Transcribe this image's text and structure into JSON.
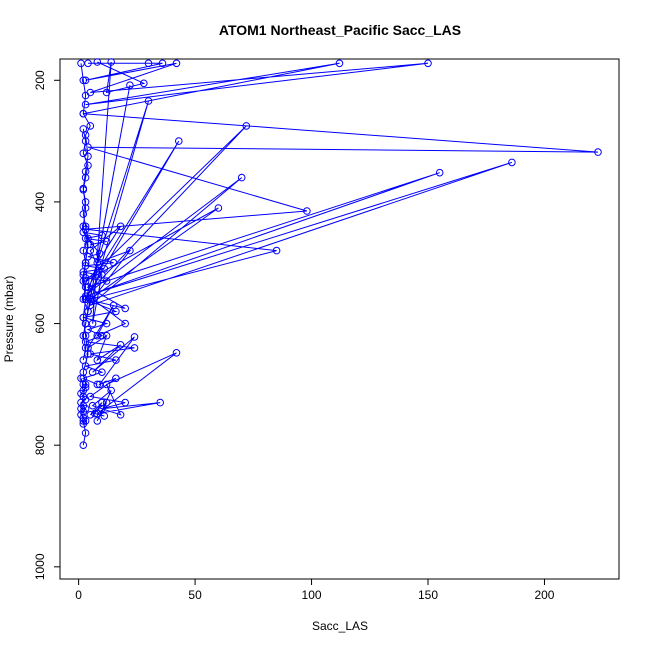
{
  "chart_data": {
    "type": "line",
    "title": "ATOM1 Northeast_Pacific Sacc_LAS",
    "xlabel": "Sacc_LAS",
    "ylabel": "Pressure (mbar)",
    "xlim": [
      -8,
      232
    ],
    "ylim": [
      1020,
      165
    ],
    "y_reversed": true,
    "x_ticks": [
      0,
      50,
      100,
      150,
      200
    ],
    "y_ticks": [
      200,
      400,
      600,
      800,
      1000
    ],
    "grid": false,
    "legend": "none",
    "series_color": "#0000ff",
    "marker": "open-circle",
    "series": [
      {
        "x": [
          1,
          2,
          3,
          2,
          5,
          3,
          4,
          3,
          2,
          3,
          2,
          4,
          3,
          2,
          3,
          2,
          3,
          4,
          2,
          3,
          2,
          1,
          2,
          3,
          2
        ],
        "y": [
          172,
          200,
          225,
          255,
          275,
          290,
          325,
          350,
          378,
          410,
          440,
          470,
          500,
          530,
          560,
          590,
          620,
          650,
          680,
          700,
          720,
          740,
          760,
          780,
          800
        ]
      },
      {
        "x": [
          4,
          30,
          36,
          3,
          42,
          5,
          150,
          3,
          112,
          2,
          223,
          4,
          98,
          3,
          85,
          5,
          60,
          3,
          72,
          4,
          70,
          5,
          186,
          3,
          155,
          4,
          43,
          3,
          30,
          4,
          22,
          3
        ],
        "y": [
          172,
          172,
          172,
          200,
          172,
          220,
          172,
          240,
          172,
          255,
          318,
          310,
          415,
          445,
          480,
          560,
          410,
          530,
          275,
          550,
          360,
          570,
          335,
          555,
          352,
          540,
          300,
          560,
          234,
          580,
          208,
          600
        ]
      },
      {
        "x": [
          8,
          28,
          12,
          14,
          6,
          10,
          5,
          18,
          8,
          22,
          6,
          20,
          8,
          15,
          4,
          12,
          8,
          18,
          6,
          24,
          9,
          16,
          5,
          20,
          10,
          35,
          8,
          42,
          12,
          18,
          6,
          14,
          8,
          12,
          5,
          10,
          7,
          11
        ],
        "y": [
          170,
          205,
          220,
          170,
          600,
          520,
          480,
          440,
          500,
          480,
          560,
          600,
          620,
          570,
          640,
          620,
          660,
          635,
          680,
          622,
          700,
          690,
          720,
          730,
          740,
          730,
          748,
          648,
          700,
          750,
          735,
          710,
          760,
          730,
          750,
          730,
          748,
          752
        ]
      },
      {
        "x": [
          5,
          12,
          3,
          10,
          2,
          9,
          4,
          15,
          3,
          11,
          2,
          8,
          3,
          12,
          4,
          20,
          3,
          16,
          2,
          12,
          4,
          10,
          3,
          24,
          5,
          16,
          3,
          10,
          2,
          8
        ],
        "y": [
          470,
          465,
          460,
          455,
          450,
          485,
          490,
          500,
          505,
          510,
          515,
          520,
          525,
          530,
          540,
          575,
          560,
          580,
          590,
          600,
          610,
          620,
          630,
          640,
          650,
          660,
          670,
          680,
          690,
          700
        ]
      },
      {
        "x": [
          2,
          3,
          2,
          4,
          3,
          2,
          3,
          2,
          3,
          4,
          2,
          3,
          2,
          3,
          2,
          4,
          3,
          2,
          3,
          2
        ],
        "y": [
          280,
          300,
          320,
          340,
          360,
          380,
          400,
          420,
          440,
          460,
          480,
          500,
          520,
          540,
          560,
          580,
          600,
          620,
          640,
          660
        ]
      },
      {
        "x": [
          1,
          2,
          3,
          2,
          1,
          2,
          3,
          1,
          2,
          3,
          2,
          1,
          2,
          3,
          2
        ],
        "y": [
          690,
          700,
          705,
          710,
          715,
          720,
          725,
          730,
          735,
          740,
          745,
          750,
          755,
          760,
          765
        ]
      }
    ]
  }
}
